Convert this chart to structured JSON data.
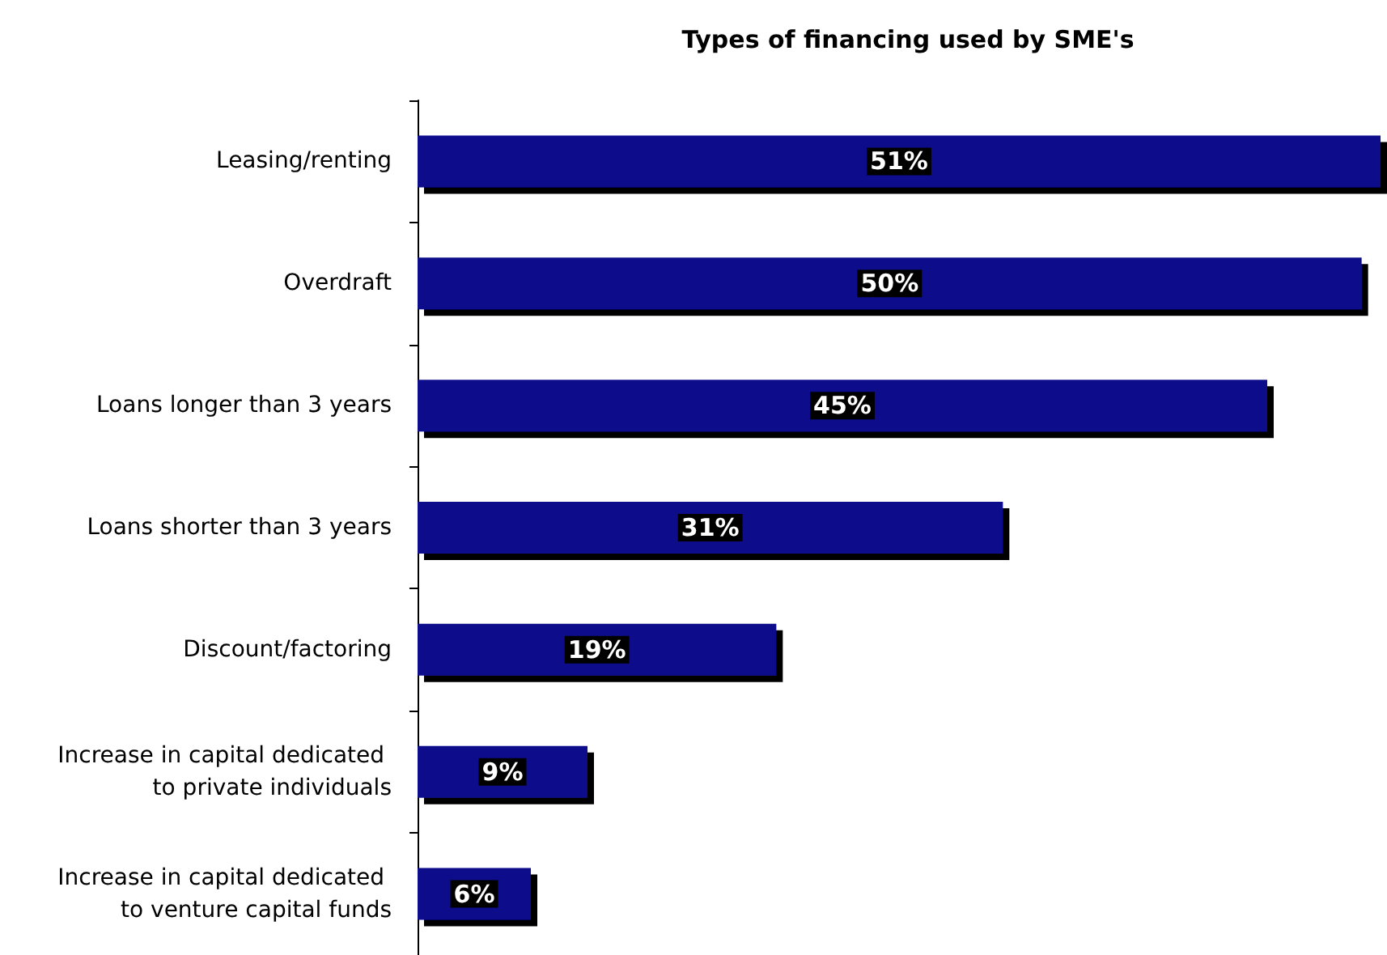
{
  "chart_data": {
    "type": "bar",
    "title": "Types of financing used by SME's",
    "orientation": "horizontal",
    "categories": [
      "Leasing/renting",
      "Overdraft",
      "Loans longer than 3 years",
      "Loans shorter than 3 years",
      "Discount/factoring",
      "Increase in capital dedicated to private individuals",
      "Increase in capital dedicated to venture capital funds"
    ],
    "values": [
      51,
      50,
      45,
      31,
      19,
      9,
      6
    ],
    "value_labels": [
      "51%",
      "50%",
      "45%",
      "31%",
      "19%",
      "9%",
      "6%"
    ],
    "color": "#0c0c8c",
    "grid": false
  }
}
